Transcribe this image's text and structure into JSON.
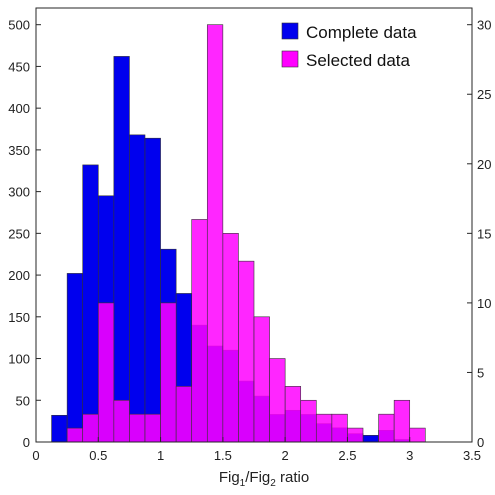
{
  "chart_data": {
    "type": "bar",
    "title": "",
    "xlabel_parts": [
      "Fig",
      "1",
      "/Fig",
      "2",
      " ratio"
    ],
    "xlim": [
      0,
      3.5
    ],
    "xticks": [
      0,
      0.5,
      1,
      1.5,
      2,
      2.5,
      3,
      3.5
    ],
    "xtick_labels": [
      "0",
      "0.5",
      "1",
      "1.5",
      "2",
      "2.5",
      "3",
      "3.5"
    ],
    "ylim_left": [
      0,
      520
    ],
    "yticks_left": [
      0,
      50,
      100,
      150,
      200,
      250,
      300,
      350,
      400,
      450,
      500
    ],
    "ytick_labels_left": [
      "0",
      "50",
      "100",
      "150",
      "200",
      "250",
      "300",
      "350",
      "400",
      "450",
      "500"
    ],
    "ylim_right": [
      0,
      31.2
    ],
    "yticks_right": [
      0,
      5,
      10,
      15,
      20,
      25,
      30
    ],
    "ytick_labels_right": [
      "0",
      "5",
      "10",
      "15",
      "20",
      "25",
      "30"
    ],
    "grid": false,
    "legend_position": "top-right",
    "series": [
      {
        "name": "Complete data",
        "axis": "left",
        "color": "#0000ee",
        "bin_width": 0.125,
        "bin_start": 0.125,
        "values": [
          32,
          202,
          332,
          295,
          462,
          368,
          364,
          231,
          178,
          140,
          115,
          110,
          73,
          55,
          33,
          38,
          33,
          22,
          17,
          10,
          8,
          14,
          3
        ]
      },
      {
        "name": "Selected data",
        "axis": "right",
        "color": "#ff00ff",
        "bin_width": 0.125,
        "bin_start": 0.25,
        "values": [
          1,
          2,
          10,
          3,
          2,
          2,
          10,
          4,
          16,
          30,
          15,
          13,
          9,
          6,
          4,
          3,
          2,
          2,
          1,
          0,
          2,
          3,
          1
        ]
      }
    ]
  }
}
